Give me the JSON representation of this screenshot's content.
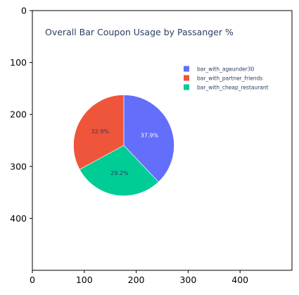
{
  "chart_data": {
    "type": "pie",
    "title": "Overall Bar Coupon Usage by Passanger %",
    "slices": [
      {
        "name": "bar_with_ageunder30",
        "value": 37.9,
        "label": "37.9%",
        "color": "#636efa",
        "label_color": "#ffffff"
      },
      {
        "name": "bar_with_cheap_restaurant",
        "value": 29.2,
        "label": "29.2%",
        "color": "#00cc96",
        "label_color": "#2a3f5f"
      },
      {
        "name": "bar_with_partner_friends",
        "value": 32.9,
        "label": "32.9%",
        "color": "#ef553b",
        "label_color": "#2a3f5f"
      }
    ],
    "legend": {
      "placement": "top-right",
      "entries": [
        {
          "name": "bar_with_ageunder30",
          "color": "#636efa"
        },
        {
          "name": "bar_with_partner_friends",
          "color": "#ef553b"
        },
        {
          "name": "bar_with_cheap_restaurant",
          "color": "#00cc96"
        }
      ]
    },
    "image_axes": {
      "x_ticks": [
        "0",
        "100",
        "200",
        "300",
        "400"
      ],
      "y_ticks": [
        "0",
        "100",
        "200",
        "300",
        "400"
      ],
      "xlim": [
        0,
        500
      ],
      "ylim": [
        500,
        0
      ]
    }
  }
}
